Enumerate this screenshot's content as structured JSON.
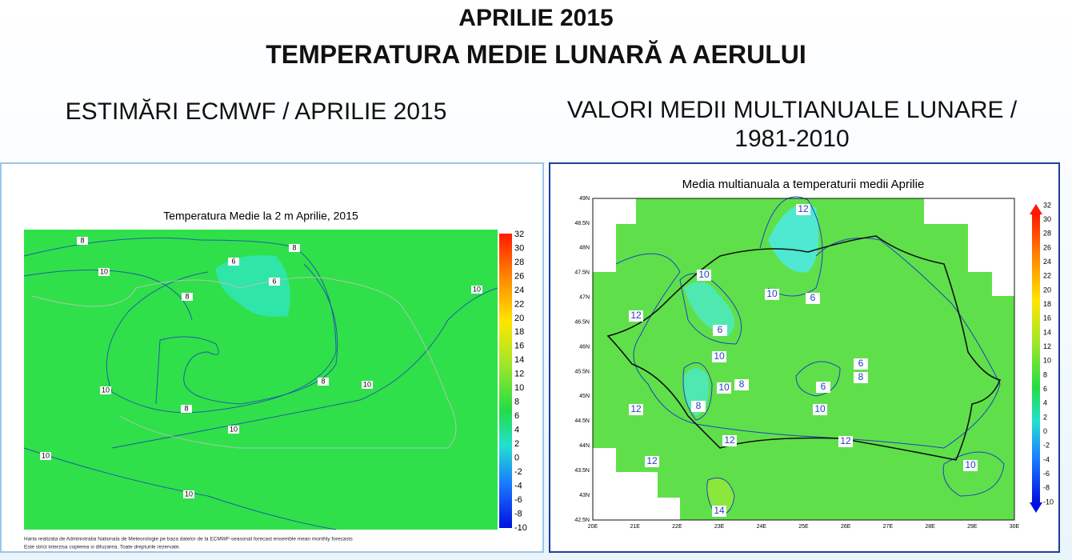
{
  "header": {
    "line1": "APRILIE 2015",
    "line2": "TEMPERATURA MEDIE LUNARĂ A AERULUI"
  },
  "left": {
    "heading": "ESTIMĂRI ECMWF / APRILIE 2015",
    "map_title": "Temperatura Medie la 2 m Aprilie, 2015",
    "colorbar_labels": [
      "32",
      "30",
      "28",
      "26",
      "24",
      "22",
      "20",
      "18",
      "16",
      "14",
      "12",
      "10",
      "8",
      "6",
      "4",
      "2",
      "0",
      "-2",
      "-4",
      "-6",
      "-8",
      "-10"
    ],
    "contour_labels": [
      "8",
      "10",
      "6",
      "8",
      "6",
      "8",
      "10",
      "10",
      "8",
      "10",
      "8",
      "10",
      "10",
      "10"
    ],
    "footnote": [
      "Harta realizata de Administratia Nationala de Meteorologie pe baza datelor de la ECMWF-seasonal forecast ensemble mean monthly forecasts",
      "Este strict interzisa copierea si difuzarea. Toate drepturile rezervate."
    ]
  },
  "right": {
    "heading": [
      "VALORI MEDII MULTIANUALE LUNARE /",
      "1981-2010"
    ],
    "map_title": "Media multianuala a temperaturii medii Aprilie",
    "colorbar_labels": [
      "32",
      "30",
      "28",
      "26",
      "24",
      "22",
      "20",
      "18",
      "16",
      "14",
      "12",
      "10",
      "8",
      "6",
      "4",
      "2",
      "0",
      "-2",
      "-4",
      "-6",
      "-8",
      "-10"
    ],
    "lat_labels": [
      "49N",
      "48.5N",
      "48N",
      "47.5N",
      "47N",
      "46.5N",
      "46N",
      "45.5N",
      "45N",
      "44.5N",
      "44N",
      "43.5N",
      "43N",
      "42.5N"
    ],
    "lon_labels": [
      "20E",
      "21E",
      "22E",
      "23E",
      "24E",
      "25E",
      "26E",
      "27E",
      "28E",
      "29E",
      "30E"
    ],
    "contour_labels": [
      "12",
      "10",
      "10",
      "6",
      "12",
      "6",
      "10",
      "6",
      "8",
      "8",
      "10",
      "6",
      "8",
      "12",
      "10",
      "12",
      "12",
      "12",
      "10",
      "14"
    ]
  }
}
